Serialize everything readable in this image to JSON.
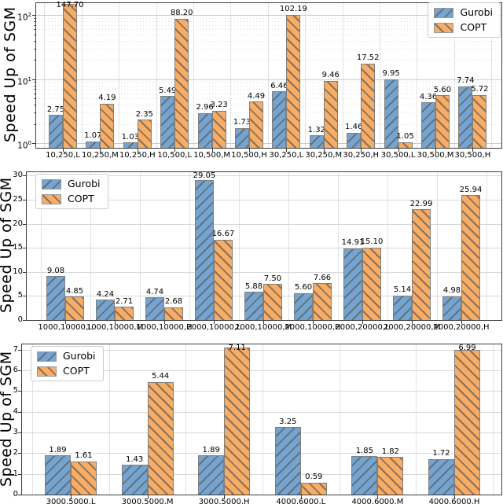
{
  "figure": {
    "ylabel": "Speed Up of SGM",
    "legend_entries": [
      "Gurobi",
      "COPT"
    ],
    "colors": {
      "gurobi_fill": "#74A5D2",
      "copt_fill": "#F9AC63",
      "hatch_line": "#626262",
      "bar_edge": "#7F7F7F",
      "grid": "#D8D8D8",
      "spine": "#3C3C3C"
    }
  },
  "chart_data": [
    {
      "type": "bar",
      "scale": "log",
      "title": "",
      "xlabel": "",
      "ylabel": "Speed Up of SGM",
      "ylim": [
        0.85,
        165
      ],
      "ytick_exponents": [
        0,
        1,
        2
      ],
      "grid": true,
      "legend_position": "upper right",
      "categories": [
        "10,250,L",
        "10,250,M",
        "10,250,H",
        "10,500,L",
        "10,500,M",
        "10,500,H",
        "30,250,L",
        "30,250,M",
        "30,250,H",
        "30,500,L",
        "30,500,M",
        "30,500,H"
      ],
      "series": [
        {
          "name": "Gurobi",
          "hatch": "//",
          "values": [
            2.75,
            1.07,
            1.03,
            5.49,
            2.96,
            1.73,
            6.46,
            1.32,
            1.46,
            9.95,
            4.36,
            7.74
          ]
        },
        {
          "name": "COPT",
          "hatch": "\\\\",
          "values": [
            147.7,
            4.19,
            2.35,
            88.2,
            3.23,
            4.49,
            102.19,
            9.46,
            17.52,
            1.05,
            5.6,
            5.72
          ]
        }
      ]
    },
    {
      "type": "bar",
      "scale": "linear",
      "title": "",
      "xlabel": "",
      "ylabel": "Speed Up of SGM",
      "ylim": [
        0,
        30.7
      ],
      "yticks": [
        0,
        5,
        10,
        15,
        20,
        25,
        30
      ],
      "grid": true,
      "legend_position": "upper left",
      "categories": [
        "1000,10000,L",
        "1000,10000,M",
        "1000,10000,H",
        "2000,10000,L",
        "2000,10000,M",
        "2000,10000,H",
        "2000,20000,L",
        "2000,20000,M",
        "2000,20000,H"
      ],
      "series": [
        {
          "name": "Gurobi",
          "hatch": "//",
          "values": [
            9.08,
            4.24,
            4.74,
            29.05,
            5.88,
            5.6,
            14.91,
            5.14,
            4.98
          ]
        },
        {
          "name": "COPT",
          "hatch": "\\\\",
          "values": [
            4.85,
            2.71,
            2.68,
            16.67,
            7.5,
            7.66,
            15.1,
            22.99,
            25.94
          ]
        }
      ]
    },
    {
      "type": "bar",
      "scale": "linear",
      "title": "",
      "xlabel": "",
      "ylabel": "Speed Up of SGM",
      "ylim": [
        0,
        7.25
      ],
      "yticks": [
        0,
        1,
        2,
        3,
        4,
        5,
        6,
        7
      ],
      "grid": true,
      "legend_position": "upper left",
      "categories": [
        "3000,5000,L",
        "3000,5000,M",
        "3000,5000,H",
        "4000,6000,L",
        "4000,6000,M",
        "4000,6000,H"
      ],
      "series": [
        {
          "name": "Gurobi",
          "hatch": "//",
          "values": [
            1.89,
            1.43,
            1.89,
            3.25,
            1.85,
            1.72
          ]
        },
        {
          "name": "COPT",
          "hatch": "\\\\",
          "values": [
            1.61,
            5.44,
            7.11,
            0.59,
            1.82,
            6.99
          ]
        }
      ]
    }
  ]
}
